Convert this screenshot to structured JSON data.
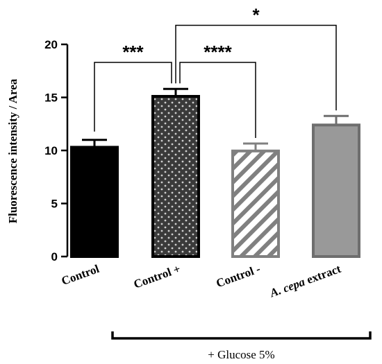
{
  "chart_data": {
    "type": "bar",
    "ylabel": "Fluorescence intensity / Area",
    "xlabel": "",
    "ylim": [
      0,
      20
    ],
    "yticks": [
      0,
      5,
      10,
      15,
      20
    ],
    "categories": [
      {
        "label": "Control",
        "italic_prefix": "",
        "rest": "Control",
        "value": 10.3,
        "error": 0.7,
        "fill": "#000000",
        "stroke": "#000000",
        "pattern": "solid"
      },
      {
        "label": "Control +",
        "italic_prefix": "",
        "rest": "Control +",
        "value": 15.1,
        "error": 0.7,
        "fill": "#3a3a3a",
        "stroke": "#000000",
        "pattern": "dots"
      },
      {
        "label": "Control -",
        "italic_prefix": "",
        "rest": "Control -",
        "value": 9.95,
        "error": 0.7,
        "fill": "#ffffff",
        "stroke": "#808080",
        "pattern": "stripes"
      },
      {
        "label": "A. cepa extract",
        "italic_prefix": "A. cepa",
        "rest": " extract",
        "value": 12.4,
        "error": 0.85,
        "fill": "#999999",
        "stroke": "#6e6e6e",
        "pattern": "solid"
      }
    ],
    "significance": [
      {
        "from": 0,
        "to": 1,
        "label": "***",
        "y": 18.3
      },
      {
        "from": 1,
        "to": 2,
        "label": "****",
        "y": 18.3
      },
      {
        "from": 1,
        "to": 3,
        "label": "*",
        "y": 21.8
      }
    ],
    "group_bracket": {
      "from": 1,
      "to": 3,
      "label": "+ Glucose 5%"
    }
  }
}
